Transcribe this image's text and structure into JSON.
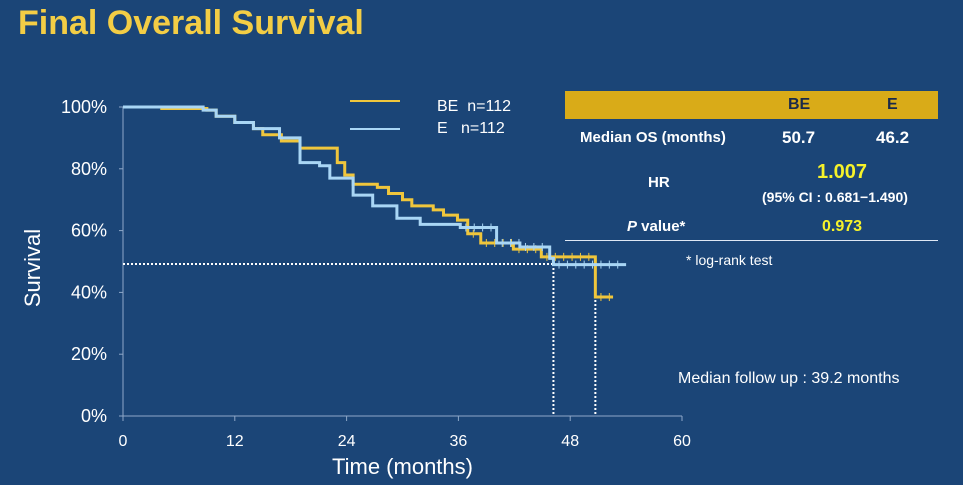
{
  "title": "Final Overall Survival",
  "chart_data": {
    "type": "line",
    "subtype": "kaplan-meier-step",
    "xlabel": "Time (months)",
    "ylabel": "Survival",
    "xlim": [
      0,
      60
    ],
    "ylim": [
      0,
      100
    ],
    "xticks": [
      "0",
      "12",
      "24",
      "36",
      "48",
      "60"
    ],
    "yticks": [
      "0%",
      "20%",
      "40%",
      "60%",
      "80%",
      "100%"
    ],
    "legend_placement": "top-center",
    "series": [
      {
        "name": "BE  n=112",
        "color": "#f0c63c",
        "x": [
          4,
          9,
          10,
          12,
          14,
          15,
          17,
          19,
          22.3,
          23,
          23.8,
          24.7,
          27.3,
          28.5,
          30,
          31,
          33.3,
          34.4,
          35.9,
          37,
          38.4,
          41.9,
          44.9,
          50.7,
          52.6
        ],
        "y": [
          99.5,
          99,
          97,
          95,
          93,
          91,
          89,
          86.7,
          86.7,
          82,
          78,
          75,
          74,
          72,
          70,
          68,
          66.7,
          65,
          63.4,
          59,
          56,
          54,
          51.5,
          38.5,
          38.5
        ]
      },
      {
        "name": "E   n=112",
        "color": "#a9d6f5",
        "x": [
          0,
          8.6,
          10,
          12,
          14,
          16.8,
          19,
          21.1,
          22.2,
          24.7,
          26.8,
          29.4,
          31.9,
          36.2,
          40.1,
          42.6,
          45.8,
          46.2,
          54
        ],
        "y": [
          100,
          99,
          97,
          95,
          93,
          90,
          82,
          81,
          77,
          71.5,
          68,
          64,
          62,
          61,
          56,
          54.7,
          51,
          49,
          49
        ]
      }
    ],
    "median_survival_reference": 50,
    "median_markers_months": [
      46.2,
      50.7
    ]
  },
  "table": {
    "headers": [
      "",
      "BE",
      "E"
    ],
    "median_os_label": "Median OS (months)",
    "median_os_be": "50.7",
    "median_os_e": "46.2",
    "hr_label": "HR",
    "hr_value": "1.007",
    "hr_ci": "(95% CI : 0.681−1.490)",
    "p_label_italic": "P",
    "p_label_rest": " value*",
    "p_value": "0.973",
    "footnote": "* log-rank test"
  },
  "median_follow_up": "Median follow up : 39.2 months"
}
